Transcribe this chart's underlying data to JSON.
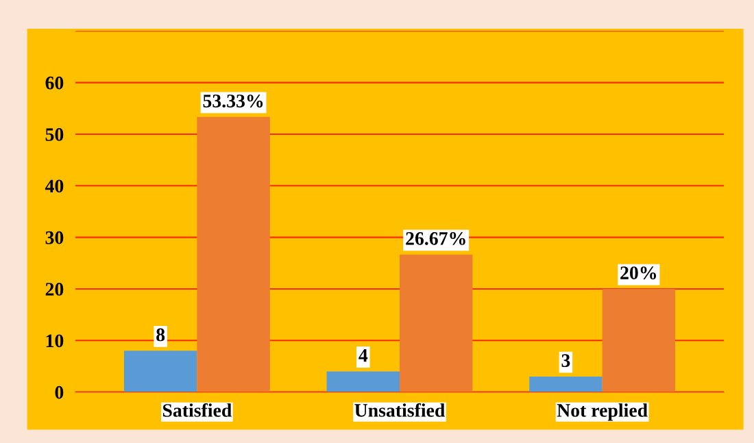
{
  "chart_data": {
    "type": "bar",
    "categories": [
      "Satisfied",
      "Unsatisfied",
      "Not replied"
    ],
    "series": [
      {
        "color": "#5b9bd5",
        "values": [
          8,
          4,
          3
        ],
        "value_labels": [
          "8",
          "4",
          "3"
        ]
      },
      {
        "color": "#ed7d31",
        "values": [
          53.33,
          26.67,
          20
        ],
        "value_labels": [
          "53.33%",
          "26.67%",
          "20%"
        ]
      }
    ],
    "ylim": [
      0,
      70
    ],
    "yticks": [
      0,
      10,
      20,
      30,
      40,
      50,
      60,
      {
        "value": 70,
        "label": null
      }
    ],
    "grid": "y",
    "legend": false
  }
}
